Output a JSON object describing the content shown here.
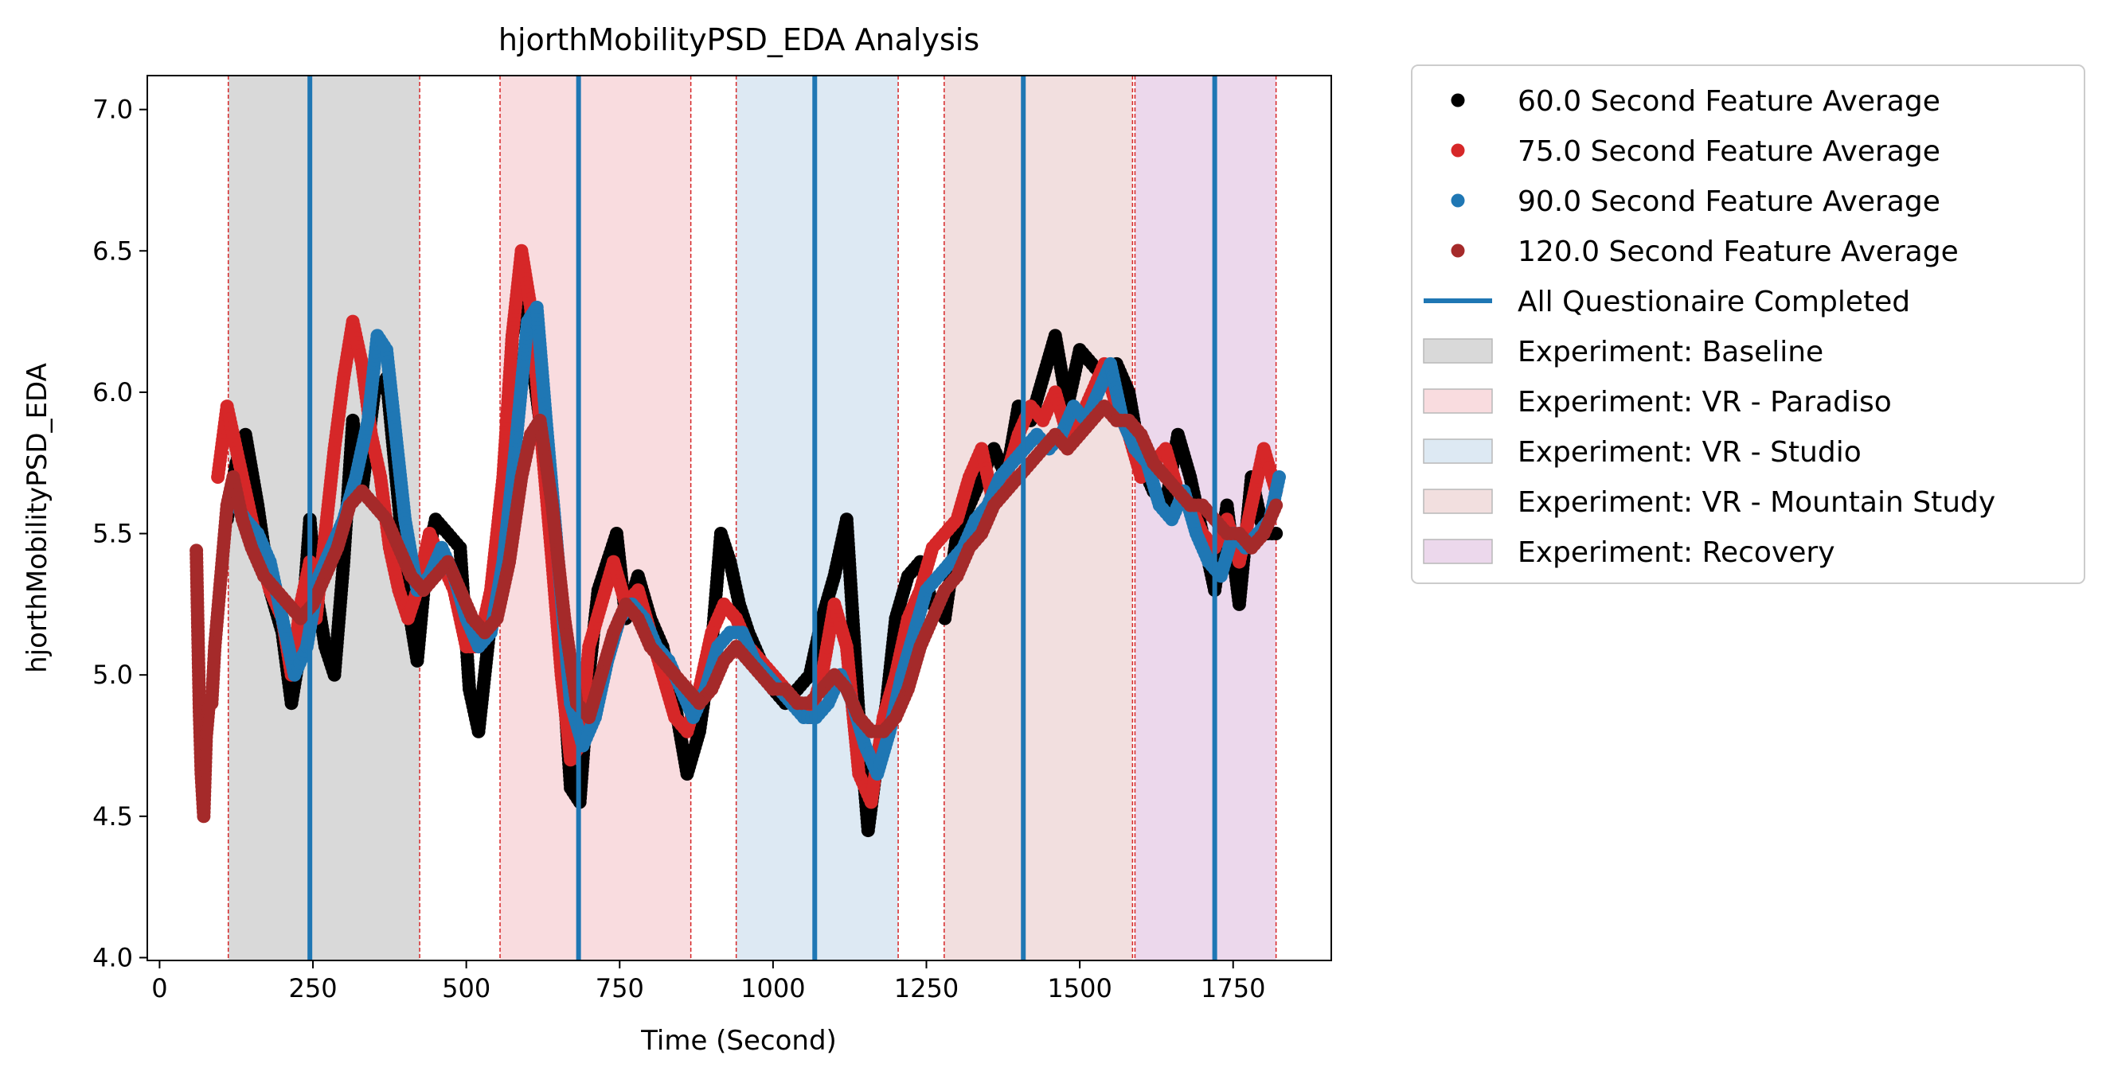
{
  "chart_data": {
    "type": "scatter",
    "title": "hjorthMobilityPSD_EDA Analysis",
    "xlabel": "Time (Second)",
    "ylabel": "hjorthMobilityPSD_EDA",
    "xlim": [
      -20,
      1910
    ],
    "ylim": [
      3.99,
      7.12
    ],
    "xticks": [
      "0",
      "250",
      "500",
      "750",
      "1000",
      "1250",
      "1500",
      "1750"
    ],
    "xtick_values": [
      0,
      250,
      500,
      750,
      1000,
      1250,
      1500,
      1750
    ],
    "yticks": [
      "4.0",
      "4.5",
      "5.0",
      "5.5",
      "6.0",
      "6.5",
      "7.0"
    ],
    "ytick_values": [
      4.0,
      4.5,
      5.0,
      5.5,
      6.0,
      6.5,
      7.0
    ],
    "grid": false,
    "legend_placement": "outside-right",
    "questionnaire_completed_times": [
      245,
      683,
      1068,
      1408,
      1720
    ],
    "phases": [
      {
        "label": "Experiment: Baseline",
        "start": 112,
        "end": 424,
        "color": "#d9d9d9"
      },
      {
        "label": "Experiment: VR - Paradiso",
        "start": 555,
        "end": 866,
        "color": "#f9dcdf"
      },
      {
        "label": "Experiment: VR - Studio",
        "start": 940,
        "end": 1204,
        "color": "#dde9f3"
      },
      {
        "label": "Experiment: VR - Mountain Study",
        "start": 1279,
        "end": 1586,
        "color": "#f2dfdf"
      },
      {
        "label": "Experiment: Recovery",
        "start": 1590,
        "end": 1820,
        "color": "#ecd8ec"
      }
    ],
    "phase_boundary_color": "#d62728",
    "series": [
      {
        "name": "60.0 Second Feature Average",
        "color": "#000000",
        "x": [
          110,
          125,
          140,
          160,
          180,
          200,
          215,
          230,
          245,
          255,
          270,
          285,
          300,
          315,
          330,
          350,
          370,
          390,
          405,
          420,
          435,
          450,
          470,
          490,
          505,
          520,
          540,
          560,
          575,
          590,
          605,
          620,
          640,
          655,
          670,
          685,
          700,
          715,
          730,
          745,
          760,
          780,
          800,
          820,
          840,
          860,
          880,
          900,
          915,
          930,
          945,
          960,
          980,
          1000,
          1020,
          1040,
          1060,
          1080,
          1100,
          1120,
          1140,
          1155,
          1170,
          1185,
          1200,
          1220,
          1240,
          1260,
          1280,
          1300,
          1320,
          1340,
          1360,
          1380,
          1400,
          1420,
          1440,
          1460,
          1480,
          1500,
          1520,
          1540,
          1560,
          1580,
          1600,
          1620,
          1640,
          1660,
          1680,
          1700,
          1720,
          1740,
          1760,
          1780,
          1800,
          1820
        ],
        "y": [
          5.55,
          5.75,
          5.85,
          5.6,
          5.3,
          5.15,
          4.9,
          5.1,
          5.55,
          5.3,
          5.1,
          5.0,
          5.4,
          5.9,
          5.65,
          6.0,
          6.05,
          5.6,
          5.25,
          5.05,
          5.4,
          5.55,
          5.5,
          5.45,
          4.95,
          4.8,
          5.2,
          5.6,
          6.2,
          6.35,
          6.15,
          5.9,
          5.45,
          5.1,
          4.6,
          4.55,
          5.0,
          5.3,
          5.4,
          5.5,
          5.2,
          5.35,
          5.2,
          5.1,
          4.9,
          4.65,
          4.8,
          5.1,
          5.5,
          5.4,
          5.25,
          5.15,
          5.05,
          4.95,
          4.9,
          4.95,
          5.0,
          5.2,
          5.35,
          5.55,
          4.85,
          4.45,
          4.7,
          4.9,
          5.2,
          5.35,
          5.4,
          5.25,
          5.2,
          5.5,
          5.6,
          5.7,
          5.8,
          5.7,
          5.95,
          5.9,
          6.05,
          6.2,
          5.95,
          6.15,
          6.1,
          6.05,
          6.1,
          6.0,
          5.75,
          5.65,
          5.6,
          5.85,
          5.7,
          5.5,
          5.3,
          5.6,
          5.25,
          5.7,
          5.5,
          5.5
        ]
      },
      {
        "name": "75.0 Second Feature Average",
        "color": "#d62728",
        "x": [
          95,
          110,
          125,
          140,
          160,
          180,
          200,
          215,
          230,
          245,
          255,
          270,
          285,
          300,
          315,
          330,
          345,
          360,
          375,
          390,
          405,
          420,
          440,
          460,
          480,
          500,
          520,
          540,
          560,
          575,
          590,
          605,
          620,
          640,
          655,
          670,
          685,
          700,
          720,
          740,
          760,
          780,
          800,
          820,
          840,
          860,
          880,
          900,
          920,
          940,
          960,
          980,
          1000,
          1020,
          1040,
          1060,
          1080,
          1100,
          1120,
          1140,
          1160,
          1180,
          1200,
          1220,
          1240,
          1260,
          1280,
          1300,
          1320,
          1340,
          1360,
          1380,
          1400,
          1420,
          1440,
          1460,
          1480,
          1500,
          1520,
          1540,
          1560,
          1580,
          1600,
          1620,
          1640,
          1660,
          1680,
          1700,
          1720,
          1740,
          1760,
          1780,
          1800,
          1820
        ],
        "y": [
          5.7,
          5.95,
          5.8,
          5.65,
          5.45,
          5.3,
          5.2,
          5.0,
          5.25,
          5.4,
          5.2,
          5.5,
          5.8,
          6.05,
          6.25,
          6.1,
          5.85,
          5.7,
          5.45,
          5.3,
          5.2,
          5.3,
          5.5,
          5.4,
          5.3,
          5.1,
          5.1,
          5.3,
          5.7,
          6.2,
          6.5,
          6.3,
          5.9,
          5.4,
          5.0,
          4.7,
          4.75,
          5.1,
          5.25,
          5.4,
          5.25,
          5.3,
          5.15,
          5.0,
          4.85,
          4.8,
          4.95,
          5.15,
          5.25,
          5.2,
          5.1,
          5.05,
          5.0,
          4.95,
          4.9,
          4.85,
          5.0,
          5.25,
          5.1,
          4.65,
          4.55,
          4.85,
          5.0,
          5.2,
          5.3,
          5.45,
          5.5,
          5.55,
          5.7,
          5.8,
          5.6,
          5.7,
          5.85,
          5.95,
          5.9,
          6.0,
          5.85,
          5.9,
          6.0,
          6.1,
          5.95,
          5.85,
          5.7,
          5.75,
          5.8,
          5.65,
          5.6,
          5.5,
          5.45,
          5.55,
          5.4,
          5.6,
          5.8,
          5.65
        ]
      },
      {
        "name": "90.0 Second Feature Average",
        "color": "#1f77b4",
        "x": [
          125,
          140,
          160,
          180,
          200,
          220,
          240,
          260,
          280,
          300,
          320,
          340,
          355,
          370,
          385,
          400,
          420,
          440,
          460,
          480,
          500,
          520,
          540,
          560,
          580,
          600,
          615,
          630,
          650,
          670,
          690,
          710,
          730,
          750,
          770,
          790,
          810,
          830,
          850,
          870,
          890,
          910,
          930,
          950,
          970,
          990,
          1010,
          1030,
          1050,
          1070,
          1090,
          1110,
          1130,
          1150,
          1170,
          1190,
          1210,
          1230,
          1250,
          1270,
          1290,
          1310,
          1330,
          1350,
          1370,
          1390,
          1410,
          1430,
          1450,
          1470,
          1490,
          1510,
          1530,
          1550,
          1570,
          1590,
          1610,
          1630,
          1650,
          1670,
          1690,
          1710,
          1730,
          1750,
          1770,
          1790,
          1810,
          1825
        ],
        "y": [
          5.6,
          5.55,
          5.5,
          5.4,
          5.2,
          5.0,
          5.1,
          5.35,
          5.45,
          5.55,
          5.7,
          5.9,
          6.2,
          6.15,
          5.85,
          5.55,
          5.3,
          5.35,
          5.45,
          5.35,
          5.2,
          5.1,
          5.15,
          5.4,
          5.8,
          6.25,
          6.3,
          5.9,
          5.4,
          4.9,
          4.75,
          4.85,
          5.05,
          5.2,
          5.25,
          5.2,
          5.1,
          5.05,
          4.95,
          4.85,
          4.95,
          5.1,
          5.15,
          5.15,
          5.05,
          5.0,
          4.95,
          4.9,
          4.85,
          4.85,
          4.9,
          5.0,
          4.9,
          4.75,
          4.65,
          4.8,
          5.0,
          5.15,
          5.3,
          5.35,
          5.4,
          5.45,
          5.55,
          5.6,
          5.7,
          5.75,
          5.8,
          5.85,
          5.8,
          5.85,
          5.95,
          5.9,
          6.0,
          6.1,
          5.9,
          5.8,
          5.75,
          5.6,
          5.55,
          5.65,
          5.5,
          5.4,
          5.35,
          5.5,
          5.45,
          5.5,
          5.55,
          5.7
        ]
      },
      {
        "name": "120.0 Second Feature Average",
        "color": "#a52a2a",
        "x": [
          60,
          65,
          68,
          72,
          76,
          80,
          85,
          90,
          100,
          110,
          120,
          135,
          150,
          170,
          190,
          210,
          230,
          250,
          270,
          290,
          310,
          330,
          350,
          370,
          390,
          410,
          430,
          450,
          470,
          490,
          510,
          530,
          550,
          570,
          590,
          605,
          620,
          640,
          660,
          680,
          700,
          720,
          740,
          760,
          780,
          800,
          820,
          840,
          860,
          880,
          900,
          920,
          940,
          960,
          980,
          1000,
          1020,
          1040,
          1060,
          1080,
          1100,
          1120,
          1140,
          1160,
          1180,
          1200,
          1220,
          1240,
          1260,
          1280,
          1300,
          1320,
          1340,
          1360,
          1380,
          1400,
          1420,
          1440,
          1460,
          1480,
          1500,
          1520,
          1540,
          1560,
          1580,
          1600,
          1620,
          1640,
          1660,
          1680,
          1700,
          1720,
          1740,
          1760,
          1780,
          1800,
          1820
        ],
        "y": [
          5.44,
          4.87,
          4.65,
          4.5,
          4.78,
          4.88,
          4.9,
          5.1,
          5.35,
          5.6,
          5.7,
          5.55,
          5.45,
          5.35,
          5.3,
          5.25,
          5.2,
          5.25,
          5.35,
          5.45,
          5.6,
          5.65,
          5.6,
          5.55,
          5.45,
          5.35,
          5.3,
          5.35,
          5.4,
          5.3,
          5.2,
          5.15,
          5.2,
          5.4,
          5.7,
          5.85,
          5.9,
          5.6,
          5.2,
          4.9,
          4.85,
          5.0,
          5.15,
          5.25,
          5.2,
          5.1,
          5.05,
          5.0,
          4.95,
          4.9,
          4.95,
          5.05,
          5.1,
          5.05,
          5.0,
          4.95,
          4.95,
          4.9,
          4.9,
          4.95,
          5.0,
          4.95,
          4.85,
          4.8,
          4.8,
          4.85,
          4.95,
          5.1,
          5.2,
          5.3,
          5.35,
          5.45,
          5.5,
          5.6,
          5.65,
          5.7,
          5.75,
          5.8,
          5.85,
          5.8,
          5.85,
          5.9,
          5.95,
          5.9,
          5.9,
          5.85,
          5.75,
          5.7,
          5.65,
          5.6,
          5.6,
          5.55,
          5.5,
          5.5,
          5.45,
          5.5,
          5.6
        ]
      }
    ],
    "legend": [
      {
        "kind": "marker",
        "label": "60.0 Second Feature Average",
        "color": "#000000"
      },
      {
        "kind": "marker",
        "label": "75.0 Second Feature Average",
        "color": "#d62728"
      },
      {
        "kind": "marker",
        "label": "90.0 Second Feature Average",
        "color": "#1f77b4"
      },
      {
        "kind": "marker",
        "label": "120.0 Second Feature Average",
        "color": "#a52a2a"
      },
      {
        "kind": "line",
        "label": "All Questionaire Completed",
        "color": "#1f77b4"
      },
      {
        "kind": "patch",
        "label": "Experiment: Baseline",
        "color": "#d9d9d9"
      },
      {
        "kind": "patch",
        "label": "Experiment: VR - Paradiso",
        "color": "#f9dcdf"
      },
      {
        "kind": "patch",
        "label": "Experiment: VR - Studio",
        "color": "#dde9f3"
      },
      {
        "kind": "patch",
        "label": "Experiment: VR - Mountain Study",
        "color": "#f2dfdf"
      },
      {
        "kind": "patch",
        "label": "Experiment: Recovery",
        "color": "#ecd8ec"
      }
    ]
  }
}
